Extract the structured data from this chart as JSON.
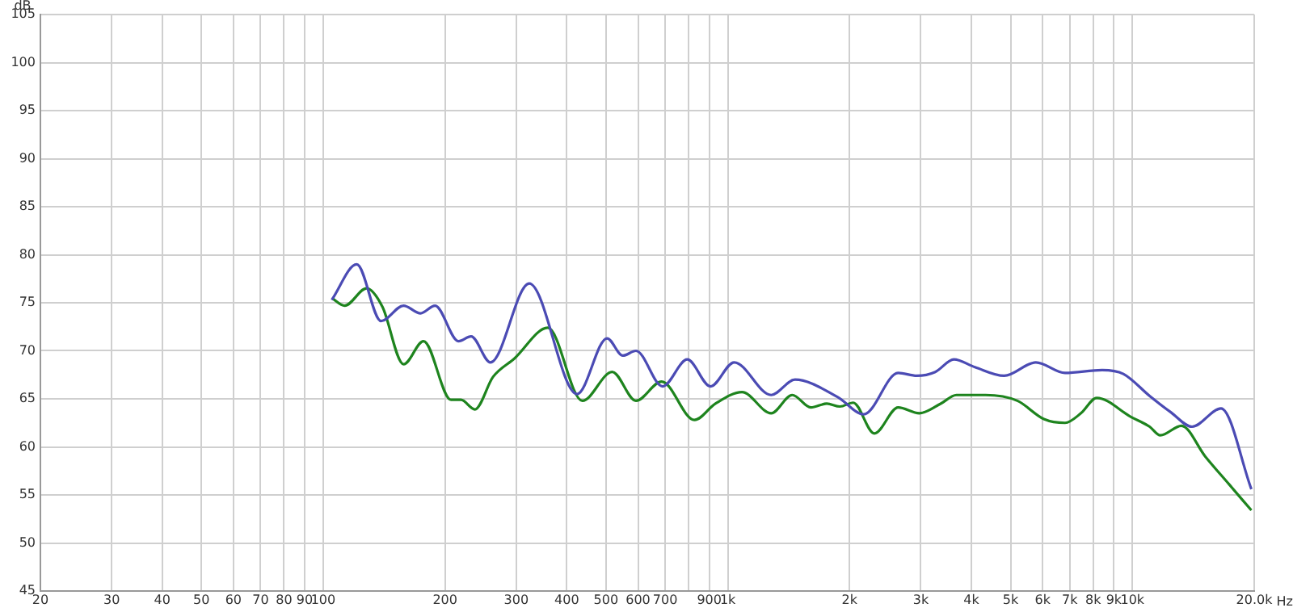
{
  "chart_data": {
    "type": "line",
    "xlabel": "Hz",
    "ylabel": "dB",
    "log": "x",
    "grid": true,
    "legend": false,
    "marker": "none",
    "line_style": "solid",
    "xlim": [
      20,
      20000
    ],
    "ylim": [
      45,
      105
    ],
    "xticks": [
      20,
      30,
      40,
      50,
      60,
      70,
      80,
      90,
      100,
      200,
      300,
      400,
      500,
      600,
      700,
      {
        "value": 800,
        "label": null
      },
      {
        "value": 900,
        "label": "900"
      },
      {
        "value": 1000,
        "label": "1k"
      },
      {
        "value": 2000,
        "label": "2k"
      },
      {
        "value": 3000,
        "label": "3k"
      },
      {
        "value": 4000,
        "label": "4k"
      },
      {
        "value": 5000,
        "label": "5k"
      },
      {
        "value": 6000,
        "label": "6k"
      },
      {
        "value": 7000,
        "label": "7k"
      },
      {
        "value": 8000,
        "label": "8k"
      },
      {
        "value": 9000,
        "label": "9k"
      },
      {
        "value": 10000,
        "label": "10k"
      },
      {
        "value": 20000,
        "label": "20.0k"
      }
    ],
    "yticks": [
      45,
      50,
      55,
      60,
      65,
      70,
      75,
      80,
      85,
      90,
      95,
      100,
      105
    ],
    "series": [
      {
        "color": "#4b4bb4",
        "x": [
          105,
          121,
          139,
          158,
          174,
          189,
          216,
          232,
          259,
          323,
          424,
          503,
          550,
          593,
          690,
          794,
          906,
          1037,
          1280,
          1466,
          1866,
          2168,
          2636,
          2932,
          3256,
          3620,
          4082,
          4820,
          5774,
          6816,
          8414,
          9496,
          11034,
          12446,
          14040,
          16560,
          19680
        ],
        "values": [
          75.3,
          79,
          73.1,
          74.7,
          73.9,
          74.7,
          71,
          71.5,
          68.8,
          77,
          65.5,
          71.3,
          69.5,
          70,
          66.3,
          69.1,
          66.3,
          68.8,
          65.4,
          67,
          65.2,
          63.4,
          67.7,
          67.4,
          67.8,
          69.1,
          68.3,
          67.4,
          68.8,
          67.7,
          68,
          67.6,
          65.3,
          63.6,
          62.1,
          64,
          55.6
        ]
      },
      {
        "color": "#1e841e",
        "x": [
          105,
          113,
          128,
          140,
          158,
          177,
          207,
          219,
          237,
          263,
          297,
          359,
          437,
          518,
          593,
          686,
          827,
          932,
          1084,
          1280,
          1443,
          1604,
          1756,
          1892,
          2041,
          2303,
          2636,
          2974,
          3358,
          3674,
          4336,
          5196,
          6040,
          6816,
          7460,
          8160,
          9934,
          11034,
          11720,
          13220,
          15140,
          17340,
          19680
        ],
        "values": [
          75.5,
          74.7,
          76.5,
          74.6,
          68.6,
          71,
          64.9,
          64.9,
          63.9,
          67.3,
          69.2,
          72.4,
          64.8,
          67.8,
          64.8,
          66.8,
          62.8,
          64.5,
          65.7,
          63.5,
          65.4,
          64.1,
          64.5,
          64.2,
          64.6,
          61.4,
          64.1,
          63.5,
          64.5,
          65.4,
          65.4,
          64.8,
          62.9,
          62.5,
          63.5,
          65.1,
          63.1,
          62.1,
          61.2,
          62.2,
          59,
          56.1,
          53.4
        ]
      }
    ]
  }
}
